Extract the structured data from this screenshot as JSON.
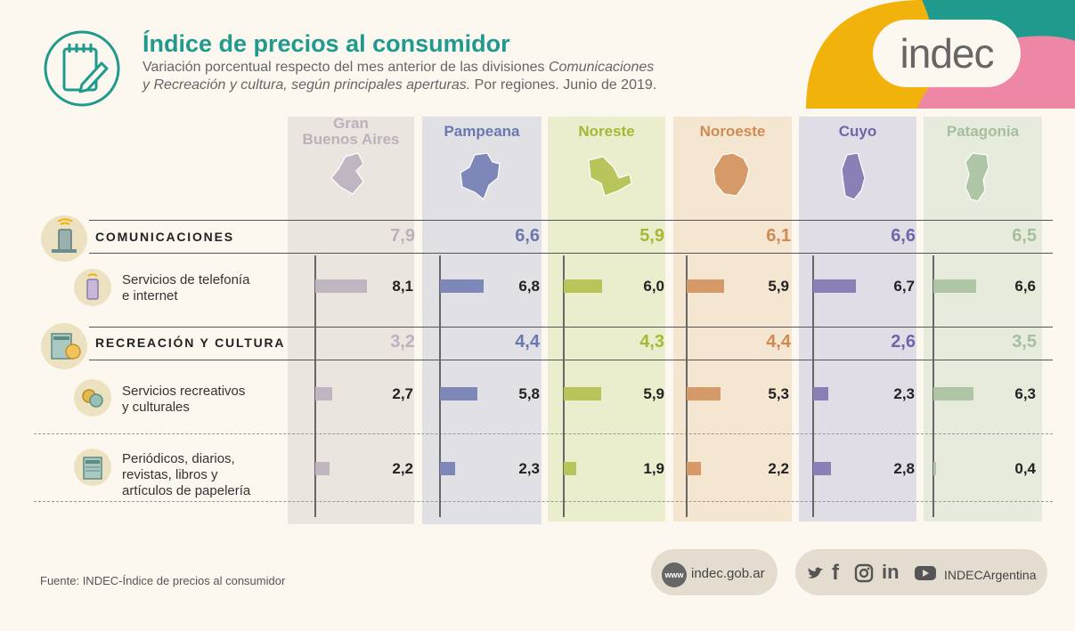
{
  "header": {
    "title": "Índice de precios al consumidor",
    "subtitle_line1_pre": "Variación porcentual respecto del mes anterior de las divisiones ",
    "subtitle_line1_em": "Comunicaciones",
    "subtitle_line2_em": "y Recreación y cultura, según principales aperturas.",
    "subtitle_line2_post": " Por regiones. Junio de 2019.",
    "brand": "indec"
  },
  "colors": {
    "teal": "#1f9a8c",
    "yellow": "#f1b20b",
    "pink": "#ee86a6",
    "background": "#fcf8f0"
  },
  "chart_data": {
    "type": "bar",
    "orientation": "horizontal",
    "regions": [
      {
        "name_line1": "Gran",
        "name_line2": "Buenos Aires",
        "color": "#bfb6c2",
        "bg": "#ebe5e0",
        "label_color": "#bab1bd"
      },
      {
        "name_line1": "Pampeana",
        "name_line2": "",
        "color": "#7d87b8",
        "bg": "#e1e0e5",
        "label_color": "#6a78b1"
      },
      {
        "name_line1": "Noreste",
        "name_line2": "",
        "color": "#b9c55a",
        "bg": "#eaeecd",
        "label_color": "#a7b836"
      },
      {
        "name_line1": "Noroeste",
        "name_line2": "",
        "color": "#d59a68",
        "bg": "#f4e6d1",
        "label_color": "#cf8b52"
      },
      {
        "name_line1": "Cuyo",
        "name_line2": "",
        "color": "#8a80b5",
        "bg": "#e0dde6",
        "label_color": "#6f66a7"
      },
      {
        "name_line1": "Patagonia",
        "name_line2": "",
        "color": "#aec5a6",
        "bg": "#e7ebdc",
        "label_color": "#a6bea0"
      }
    ],
    "groups": [
      {
        "label": "COMUNICACIONES",
        "values": [
          "7,9",
          "6,6",
          "5,9",
          "6,1",
          "6,6",
          "6,5"
        ]
      },
      {
        "label": "RECREACIÓN Y CULTURA",
        "values": [
          "3,2",
          "4,4",
          "4,3",
          "4,4",
          "2,6",
          "3,5"
        ]
      }
    ],
    "items": [
      {
        "label_line1": "Servicios de telefonía",
        "label_line2": "e internet",
        "label_line3": "",
        "label_line4": "",
        "values": [
          8.1,
          6.8,
          6.0,
          5.9,
          6.7,
          6.6
        ],
        "labels": [
          "8,1",
          "6,8",
          "6,0",
          "5,9",
          "6,7",
          "6,6"
        ]
      },
      {
        "label_line1": "Servicios recreativos",
        "label_line2": "y culturales",
        "label_line3": "",
        "label_line4": "",
        "values": [
          2.7,
          5.8,
          5.9,
          5.3,
          2.3,
          6.3
        ],
        "labels": [
          "2,7",
          "5,8",
          "5,9",
          "5,3",
          "2,3",
          "6,3"
        ]
      },
      {
        "label_line1": "Periódicos, diarios,",
        "label_line2": "revistas, libros y",
        "label_line3": "artículos de papelería",
        "label_line4": "",
        "values": [
          2.2,
          2.3,
          1.9,
          2.2,
          2.8,
          0.4
        ],
        "labels": [
          "2,2",
          "2,3",
          "1,9",
          "2,2",
          "2,8",
          "0,4"
        ]
      }
    ]
  },
  "footer": {
    "source": "Fuente: INDEC-Índice de precios al consumidor",
    "www": "www",
    "website": "indec.gob.ar",
    "social_handle": "INDECArgentina"
  }
}
